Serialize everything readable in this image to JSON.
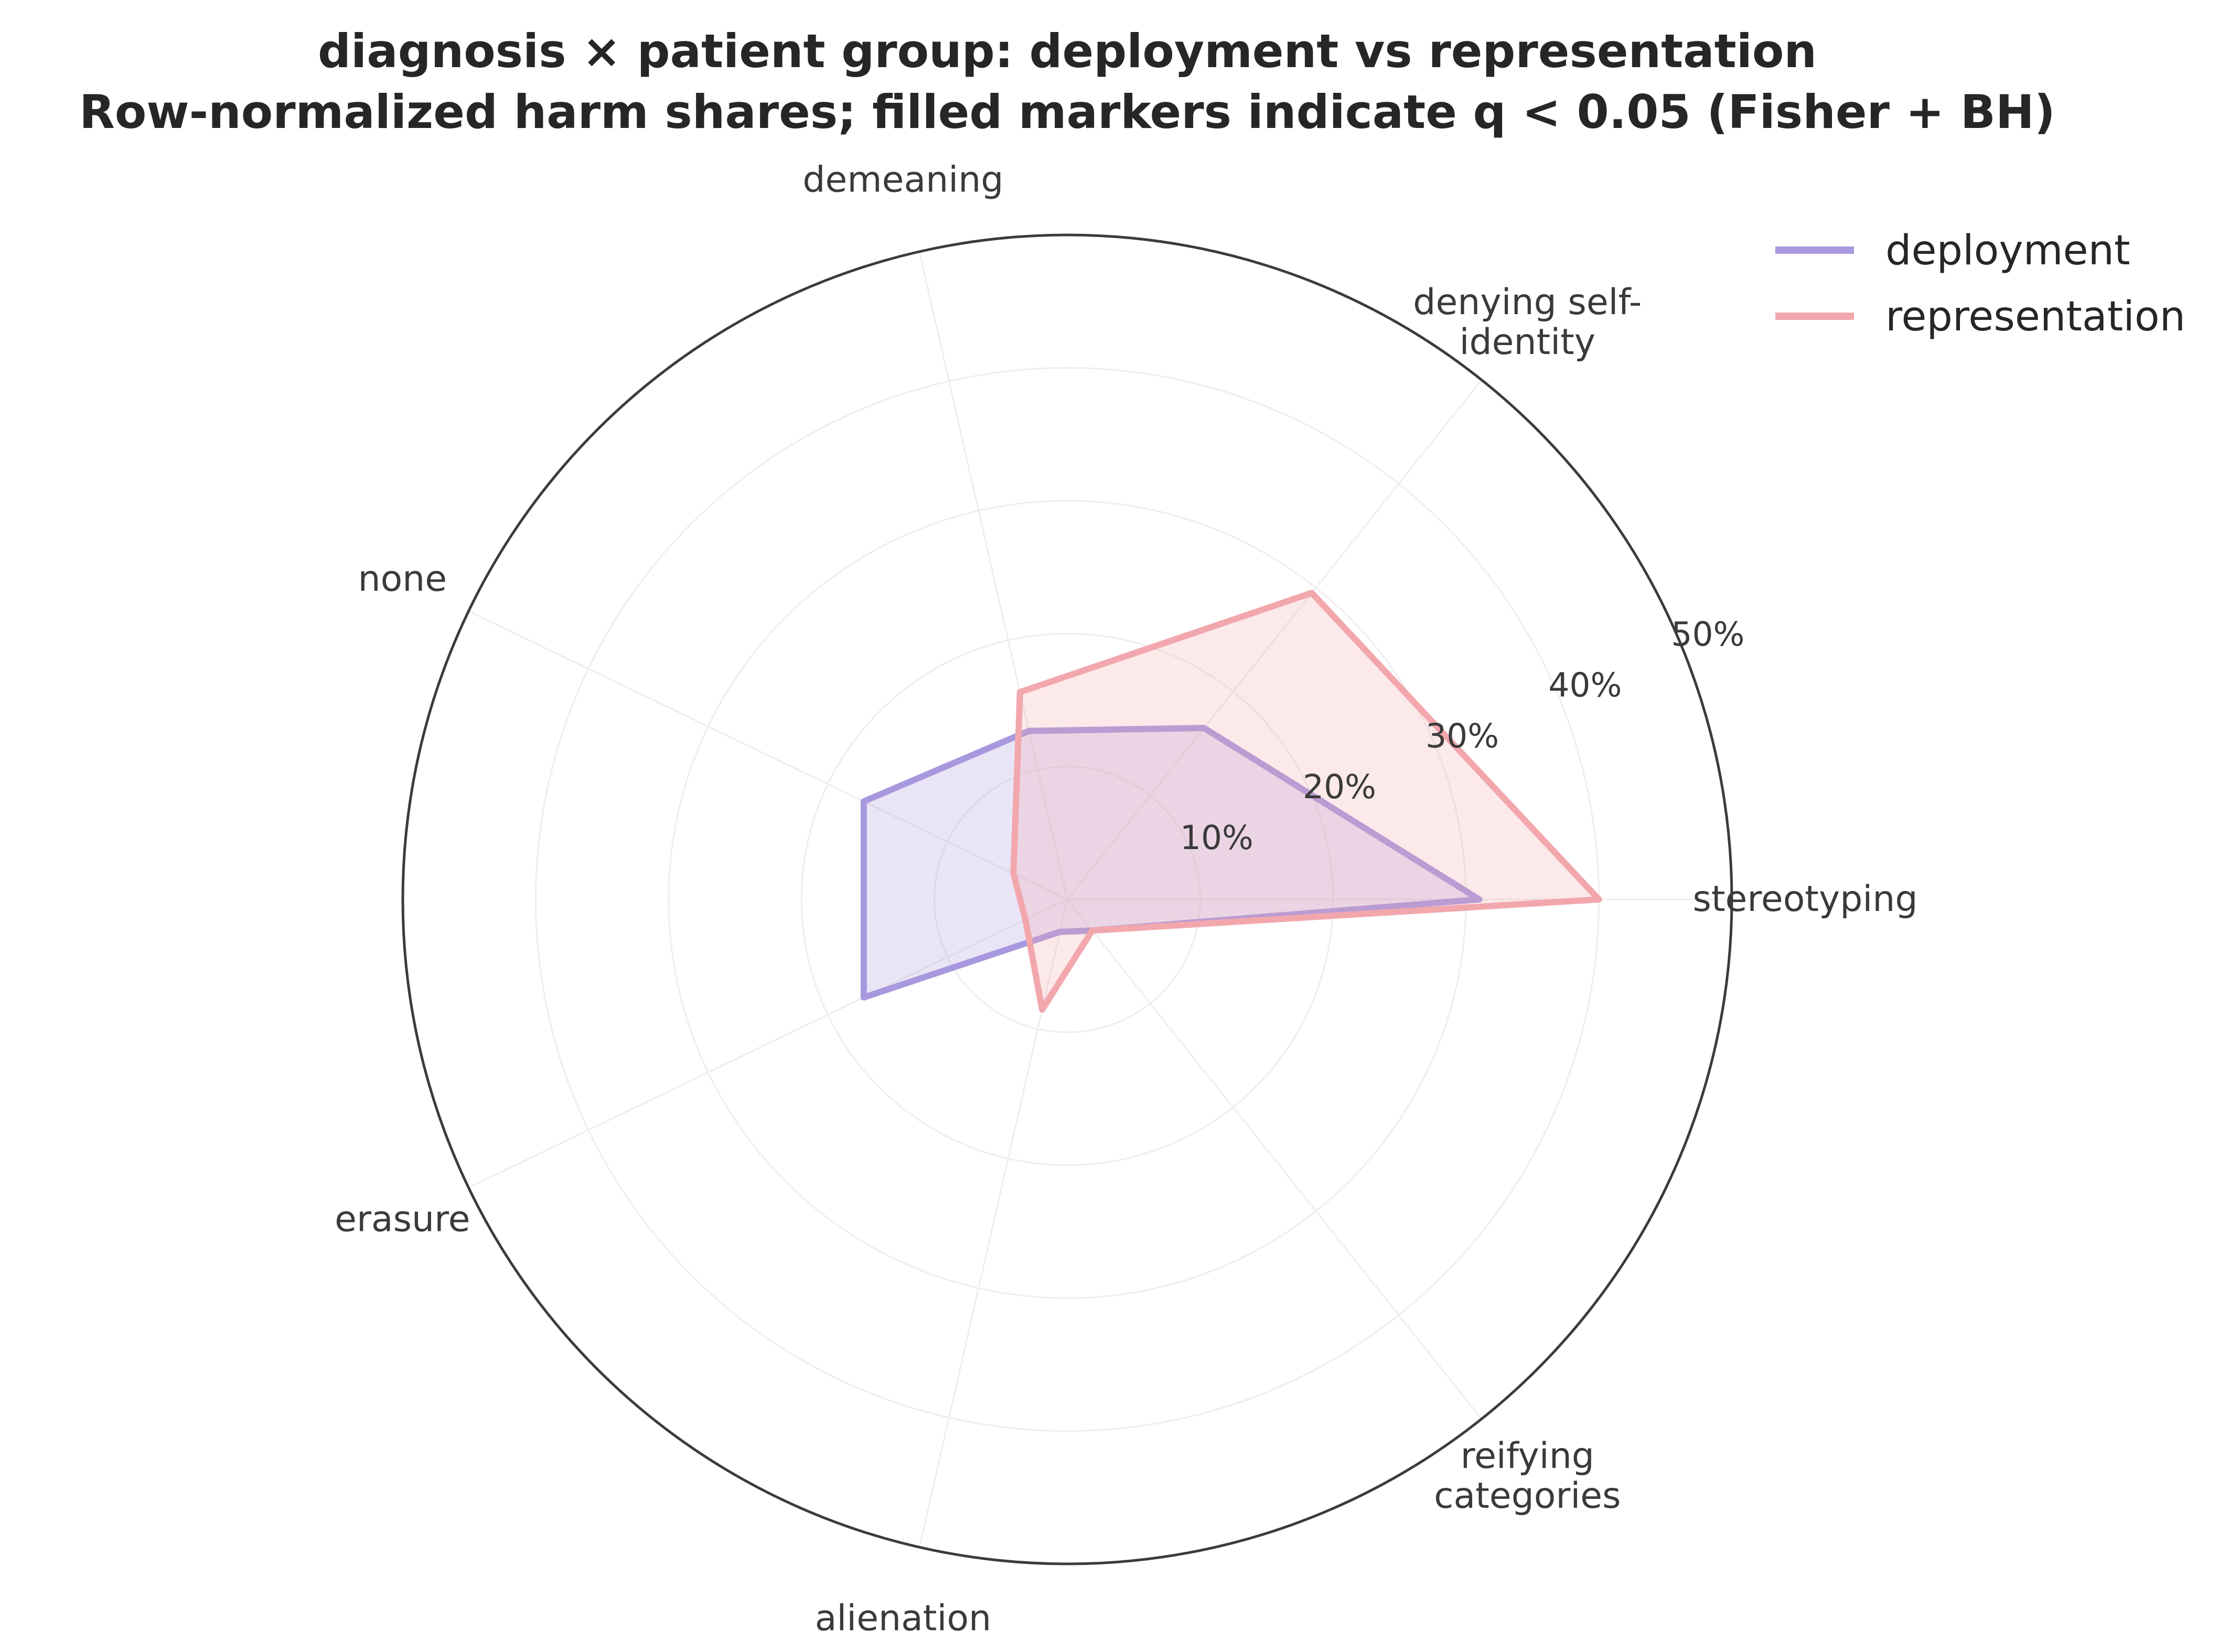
{
  "chart_data": {
    "type": "radar",
    "title_lines": [
      "diagnosis × patient group: deployment vs representation",
      "Row-normalized harm shares; filled markers indicate q < 0.05 (Fisher + BH)"
    ],
    "categories": [
      [
        "stereotyping"
      ],
      [
        "denying self-",
        "identity"
      ],
      [
        "demeaning"
      ],
      [
        "none"
      ],
      [
        "erasure"
      ],
      [
        "alienation"
      ],
      [
        "reifying",
        "categories"
      ]
    ],
    "radial_ticks": [
      10,
      20,
      30,
      40,
      50
    ],
    "radial_tick_labels": [
      "10%",
      "20%",
      "30%",
      "40%",
      "50%"
    ],
    "rlim": [
      0,
      50
    ],
    "grid": true,
    "legend_position": "top-right",
    "series": [
      {
        "name": "deployment",
        "color": "#a899df",
        "values": [
          31,
          16.5,
          13,
          17,
          17,
          2.5,
          3
        ]
      },
      {
        "name": "representation",
        "color": "#f2a7ad",
        "values": [
          40,
          29.5,
          16,
          4.5,
          3.5,
          8.5,
          3
        ]
      }
    ]
  }
}
